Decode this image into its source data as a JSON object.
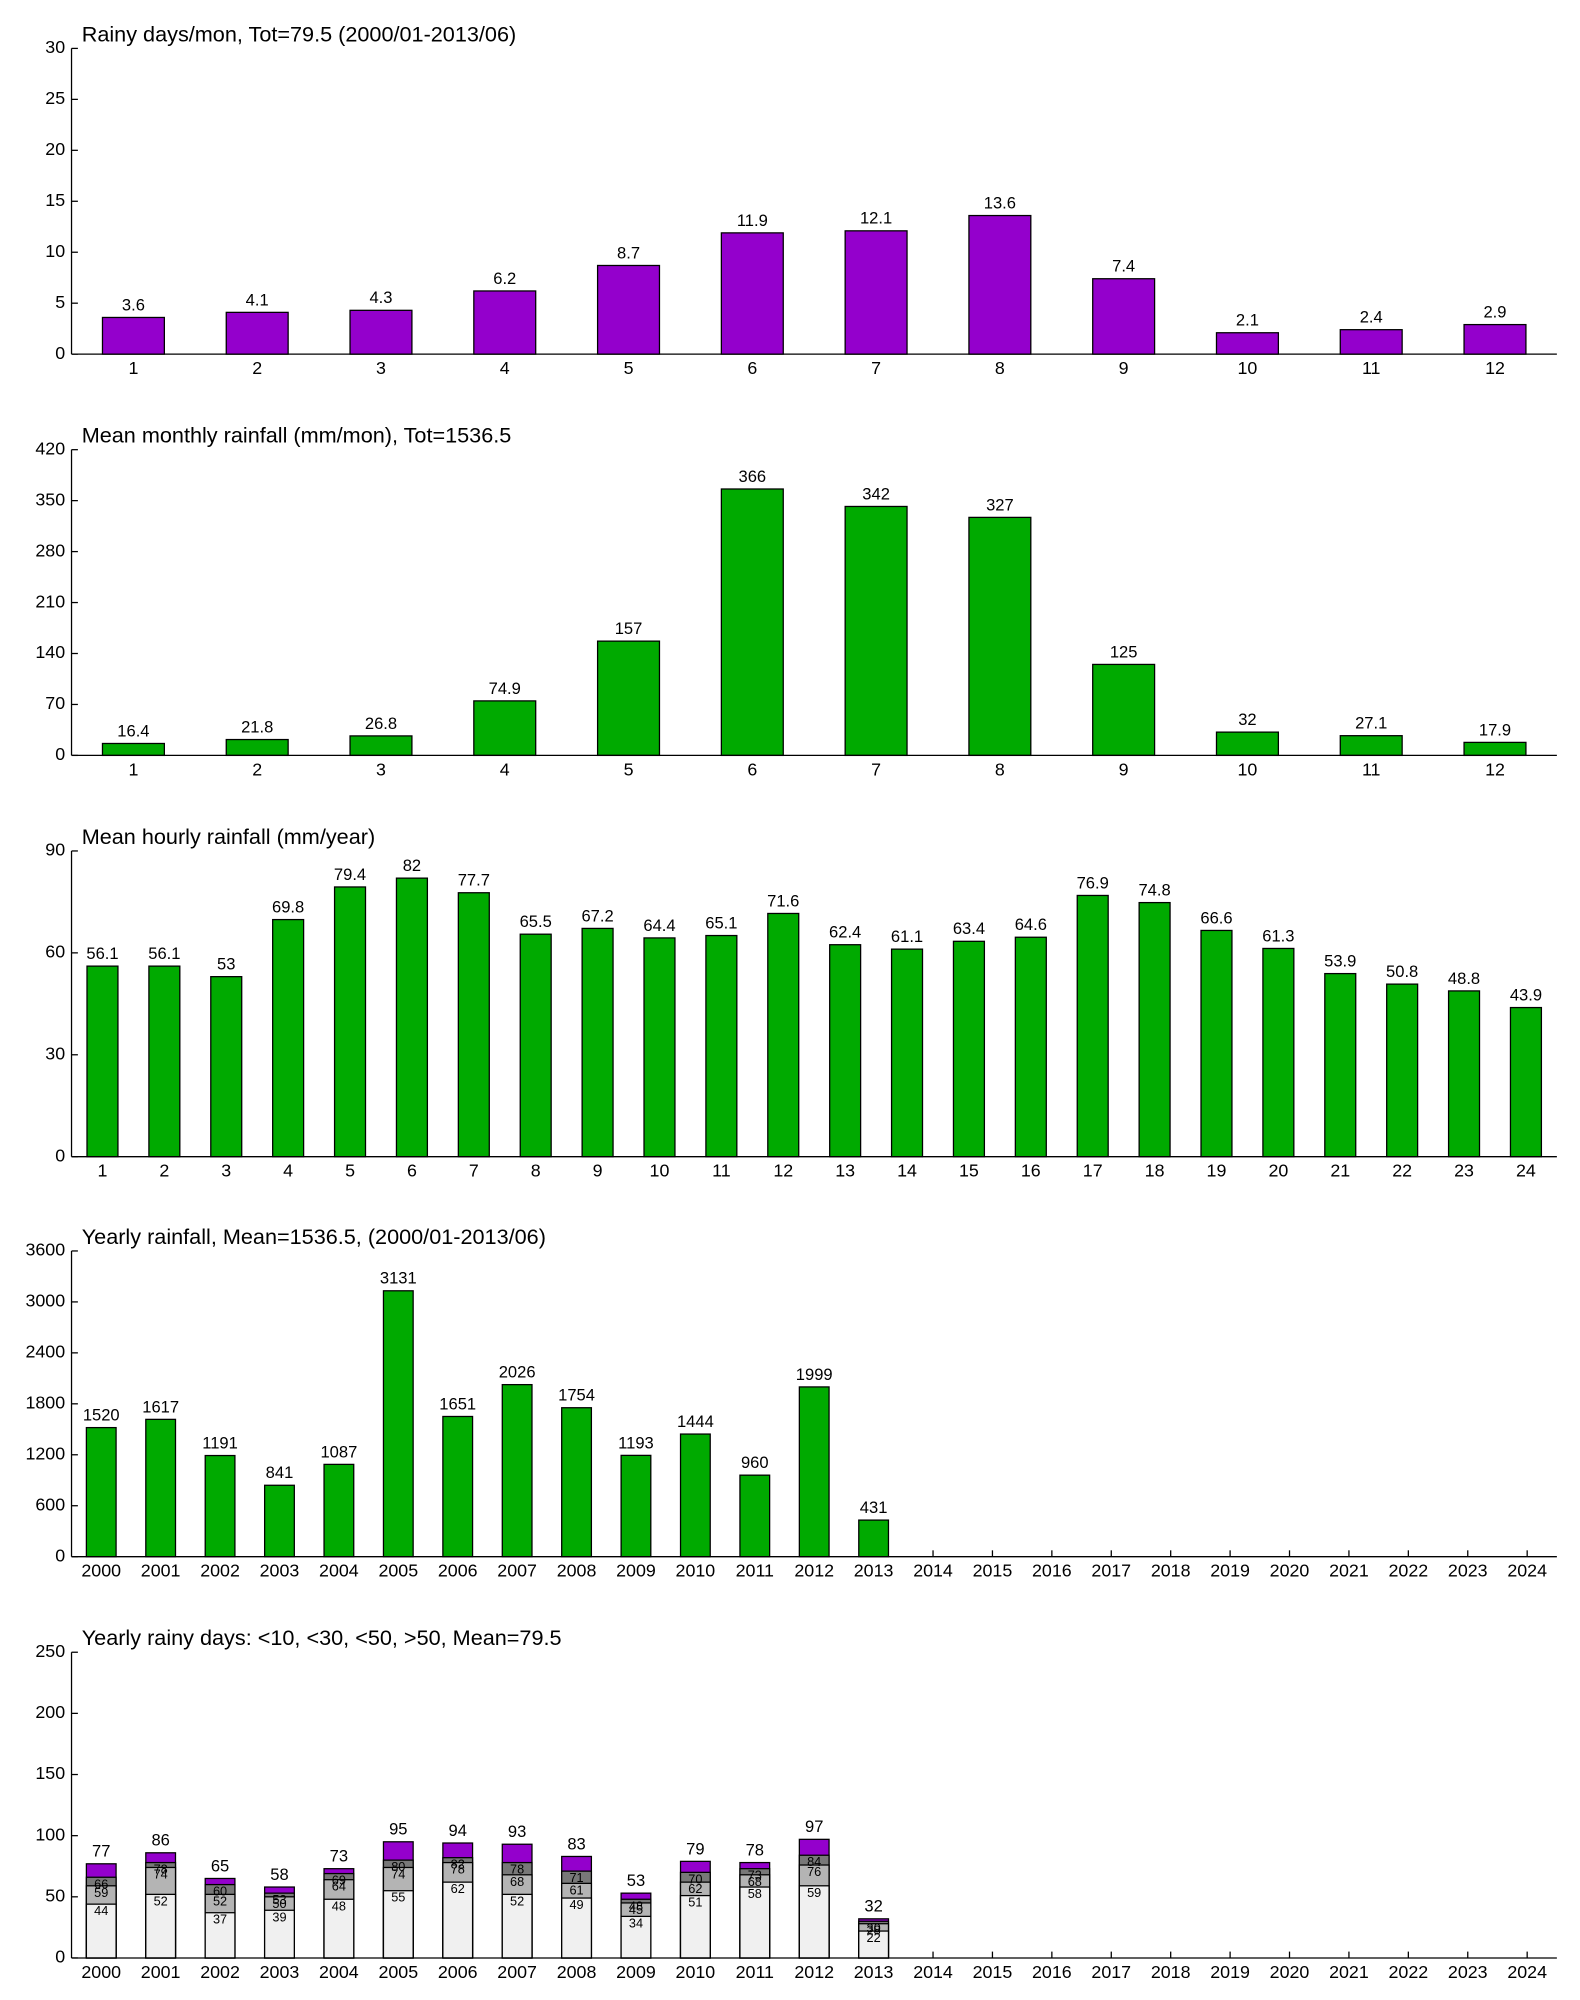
{
  "chart_data": [
    {
      "type": "bar",
      "title": "Rainy days/mon, Tot=79.5 (2000/01-2013/06)",
      "categories": [
        1,
        2,
        3,
        4,
        5,
        6,
        7,
        8,
        9,
        10,
        11,
        12
      ],
      "values": [
        3.6,
        4.1,
        4.3,
        6.2,
        8.7,
        11.9,
        12.1,
        13.6,
        7.4,
        2.1,
        2.4,
        2.9
      ],
      "color": "#9400cc",
      "ylim": [
        0,
        30
      ],
      "yticks": [
        0,
        5,
        10,
        15,
        20,
        25,
        30
      ]
    },
    {
      "type": "bar",
      "title": "Mean monthly rainfall (mm/mon), Tot=1536.5",
      "categories": [
        1,
        2,
        3,
        4,
        5,
        6,
        7,
        8,
        9,
        10,
        11,
        12
      ],
      "values": [
        16.4,
        21.8,
        26.8,
        74.9,
        157,
        366,
        342,
        327,
        125,
        32,
        27.1,
        17.9
      ],
      "color": "#00aa00",
      "ylim": [
        0,
        420
      ],
      "yticks": [
        0,
        70,
        140,
        210,
        280,
        350,
        420
      ]
    },
    {
      "type": "bar",
      "title": "Mean hourly rainfall (mm/year)",
      "categories": [
        1,
        2,
        3,
        4,
        5,
        6,
        7,
        8,
        9,
        10,
        11,
        12,
        13,
        14,
        15,
        16,
        17,
        18,
        19,
        20,
        21,
        22,
        23,
        24
      ],
      "values": [
        56.1,
        56.1,
        53,
        69.8,
        79.4,
        82,
        77.7,
        65.5,
        67.2,
        64.4,
        65.1,
        71.6,
        62.4,
        61.1,
        63.4,
        64.6,
        76.9,
        74.8,
        66.6,
        61.3,
        53.9,
        50.8,
        48.8,
        43.9
      ],
      "color": "#00aa00",
      "ylim": [
        0,
        90
      ],
      "yticks": [
        0,
        30,
        60,
        90
      ]
    },
    {
      "type": "bar",
      "title": "Yearly rainfall, Mean=1536.5, (2000/01-2013/06)",
      "categories": [
        2000,
        2001,
        2002,
        2003,
        2004,
        2005,
        2006,
        2007,
        2008,
        2009,
        2010,
        2011,
        2012,
        2013,
        2014,
        2015,
        2016,
        2017,
        2018,
        2019,
        2020,
        2021,
        2022,
        2023,
        2024
      ],
      "values": [
        1520,
        1617,
        1191,
        841,
        1087,
        3131,
        1651,
        2026,
        1754,
        1193,
        1444,
        960,
        1999,
        431,
        null,
        null,
        null,
        null,
        null,
        null,
        null,
        null,
        null,
        null,
        null
      ],
      "color": "#00aa00",
      "ylim": [
        0,
        3600
      ],
      "yticks": [
        0,
        600,
        1200,
        1800,
        2400,
        3000,
        3600
      ]
    },
    {
      "type": "overlay",
      "title": "Yearly rainy days: <10, <30, <50, >50, Mean=79.5",
      "categories": [
        2000,
        2001,
        2002,
        2003,
        2004,
        2005,
        2006,
        2007,
        2008,
        2009,
        2010,
        2011,
        2012,
        2013,
        2014,
        2015,
        2016,
        2017,
        2018,
        2019,
        2020,
        2021,
        2022,
        2023,
        2024
      ],
      "series": [
        {
          "color": "#f0f0f0",
          "values": [
            44,
            52,
            37,
            39,
            48,
            55,
            62,
            52,
            49,
            34,
            51,
            58,
            59,
            22,
            null,
            null,
            null,
            null,
            null,
            null,
            null,
            null,
            null,
            null,
            null
          ]
        },
        {
          "color": "#b4b4b4",
          "values": [
            59,
            74,
            52,
            50,
            64,
            74,
            78,
            68,
            61,
            45,
            62,
            68,
            76,
            28,
            null,
            null,
            null,
            null,
            null,
            null,
            null,
            null,
            null,
            null,
            null
          ]
        },
        {
          "color": "#787878",
          "values": [
            66,
            78,
            60,
            53,
            69,
            80,
            82,
            78,
            71,
            48,
            70,
            73,
            84,
            30,
            null,
            null,
            null,
            null,
            null,
            null,
            null,
            null,
            null,
            null,
            null
          ]
        },
        {
          "color": "#9400cc",
          "values": [
            77,
            86,
            65,
            58,
            73,
            95,
            94,
            93,
            83,
            53,
            79,
            78,
            97,
            32,
            null,
            null,
            null,
            null,
            null,
            null,
            null,
            null,
            null,
            null,
            null
          ]
        }
      ],
      "ylim": [
        0,
        250
      ],
      "yticks": [
        0,
        50,
        100,
        150,
        200,
        250
      ]
    }
  ]
}
